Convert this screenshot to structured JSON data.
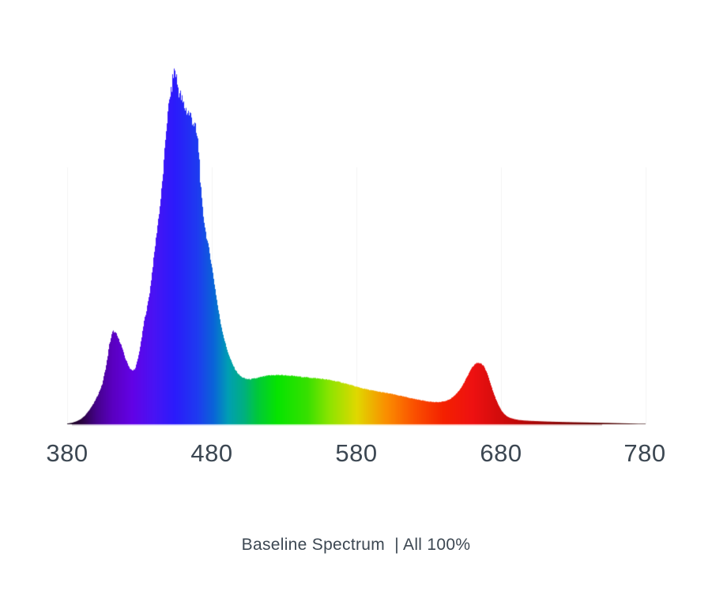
{
  "page": {
    "background_color": "#ffffff"
  },
  "caption": {
    "text": "Baseline Spectrum  | All 100%",
    "color": "#3c4752"
  },
  "axis": {
    "label_color": "#3c4752",
    "gridline_color": "#f3f3f3",
    "baseline_edge_alpha": 0.3
  },
  "chart_data": {
    "type": "area",
    "title": "Baseline Spectrum | All 100%",
    "xlabel": "",
    "ylabel": "",
    "x_range": [
      380,
      780
    ],
    "y_range": [
      0,
      1.05
    ],
    "x_ticks": [
      380,
      480,
      580,
      680,
      780
    ],
    "x_tick_labels": [
      "380",
      "480",
      "580",
      "680",
      "780"
    ],
    "grid": "vertical only, partial height, very light",
    "legend": "none",
    "series": [
      {
        "name": "baseline-spectrum-all-100pct",
        "fill": "wavelength-colormap",
        "points": [
          [
            380,
            0.002
          ],
          [
            383,
            0.004
          ],
          [
            386,
            0.008
          ],
          [
            389,
            0.014
          ],
          [
            392,
            0.024
          ],
          [
            395,
            0.04
          ],
          [
            398,
            0.058
          ],
          [
            401,
            0.082
          ],
          [
            404,
            0.112
          ],
          [
            407,
            0.17
          ],
          [
            409,
            0.225
          ],
          [
            411,
            0.258
          ],
          [
            412,
            0.262
          ],
          [
            414,
            0.252
          ],
          [
            417,
            0.225
          ],
          [
            420,
            0.185
          ],
          [
            423,
            0.158
          ],
          [
            425,
            0.15
          ],
          [
            427,
            0.158
          ],
          [
            429,
            0.19
          ],
          [
            431,
            0.235
          ],
          [
            433,
            0.29
          ],
          [
            435,
            0.327
          ],
          [
            437,
            0.375
          ],
          [
            440,
            0.48
          ],
          [
            442,
            0.55
          ],
          [
            444,
            0.615
          ],
          [
            446,
            0.7
          ],
          [
            448,
            0.815
          ],
          [
            450,
            0.9
          ],
          [
            452,
            0.95
          ],
          [
            453,
            0.975
          ],
          [
            454,
            1.0
          ],
          [
            455,
            0.985
          ],
          [
            456,
            0.955
          ],
          [
            458,
            0.925
          ],
          [
            460,
            0.9
          ],
          [
            462,
            0.885
          ],
          [
            464,
            0.874
          ],
          [
            466,
            0.862
          ],
          [
            468,
            0.838
          ],
          [
            470,
            0.8
          ],
          [
            471,
            0.76
          ],
          [
            472,
            0.68
          ],
          [
            473,
            0.625
          ],
          [
            474,
            0.585
          ],
          [
            476,
            0.53
          ],
          [
            478,
            0.49
          ],
          [
            480,
            0.44
          ],
          [
            482,
            0.385
          ],
          [
            484,
            0.33
          ],
          [
            486,
            0.283
          ],
          [
            488,
            0.246
          ],
          [
            490,
            0.215
          ],
          [
            492,
            0.19
          ],
          [
            494,
            0.17
          ],
          [
            496,
            0.154
          ],
          [
            498,
            0.142
          ],
          [
            500,
            0.134
          ],
          [
            503,
            0.128
          ],
          [
            506,
            0.1265
          ],
          [
            510,
            0.129
          ],
          [
            514,
            0.133
          ],
          [
            518,
            0.1365
          ],
          [
            522,
            0.138
          ],
          [
            525,
            0.1385
          ],
          [
            529,
            0.138
          ],
          [
            534,
            0.1365
          ],
          [
            539,
            0.1345
          ],
          [
            544,
            0.1325
          ],
          [
            549,
            0.1305
          ],
          [
            554,
            0.1285
          ],
          [
            559,
            0.126
          ],
          [
            564,
            0.1225
          ],
          [
            569,
            0.118
          ],
          [
            574,
            0.1125
          ],
          [
            579,
            0.1065
          ],
          [
            584,
            0.101
          ],
          [
            589,
            0.0965
          ],
          [
            594,
            0.0925
          ],
          [
            599,
            0.089
          ],
          [
            604,
            0.0855
          ],
          [
            609,
            0.081
          ],
          [
            614,
            0.0765
          ],
          [
            619,
            0.072
          ],
          [
            624,
            0.068
          ],
          [
            629,
            0.0645
          ],
          [
            634,
            0.062
          ],
          [
            638,
            0.0625
          ],
          [
            642,
            0.066
          ],
          [
            645,
            0.072
          ],
          [
            648,
            0.082
          ],
          [
            651,
            0.096
          ],
          [
            654,
            0.115
          ],
          [
            657,
            0.139
          ],
          [
            660,
            0.161
          ],
          [
            662,
            0.17
          ],
          [
            664,
            0.173
          ],
          [
            666,
            0.171
          ],
          [
            668,
            0.162
          ],
          [
            670,
            0.146
          ],
          [
            672,
            0.122
          ],
          [
            674,
            0.096
          ],
          [
            676,
            0.073
          ],
          [
            678,
            0.054
          ],
          [
            680,
            0.039
          ],
          [
            682,
            0.029
          ],
          [
            684,
            0.022
          ],
          [
            686,
            0.018
          ],
          [
            689,
            0.0145
          ],
          [
            692,
            0.012
          ],
          [
            696,
            0.0105
          ],
          [
            700,
            0.0095
          ],
          [
            706,
            0.0085
          ],
          [
            712,
            0.0075
          ],
          [
            718,
            0.0068
          ],
          [
            724,
            0.0062
          ],
          [
            730,
            0.0056
          ],
          [
            738,
            0.005
          ],
          [
            746,
            0.0043
          ],
          [
            754,
            0.0036
          ],
          [
            762,
            0.0028
          ],
          [
            768,
            0.0022
          ],
          [
            773,
            0.0016
          ],
          [
            777,
            0.001
          ],
          [
            780,
            0.0006
          ]
        ]
      }
    ],
    "wavelength_colormap": [
      [
        380,
        "#140018"
      ],
      [
        390,
        "#2a0240"
      ],
      [
        400,
        "#45028b"
      ],
      [
        411,
        "#5a00c0"
      ],
      [
        425,
        "#6202e6"
      ],
      [
        440,
        "#4813f4"
      ],
      [
        454,
        "#2b1bfb"
      ],
      [
        470,
        "#1e3bf0"
      ],
      [
        481,
        "#0a64d8"
      ],
      [
        491,
        "#009eb4"
      ],
      [
        502,
        "#00b080"
      ],
      [
        511,
        "#00c83c"
      ],
      [
        525,
        "#06e400"
      ],
      [
        546,
        "#38e000"
      ],
      [
        561,
        "#8ce400"
      ],
      [
        580,
        "#e0d800"
      ],
      [
        600,
        "#fa9000"
      ],
      [
        620,
        "#fa5000"
      ],
      [
        640,
        "#f42000"
      ],
      [
        660,
        "#ee1111"
      ],
      [
        691,
        "#c00808"
      ],
      [
        721,
        "#8a0505"
      ],
      [
        761,
        "#4a0202"
      ],
      [
        780,
        "#2a0101"
      ]
    ]
  }
}
